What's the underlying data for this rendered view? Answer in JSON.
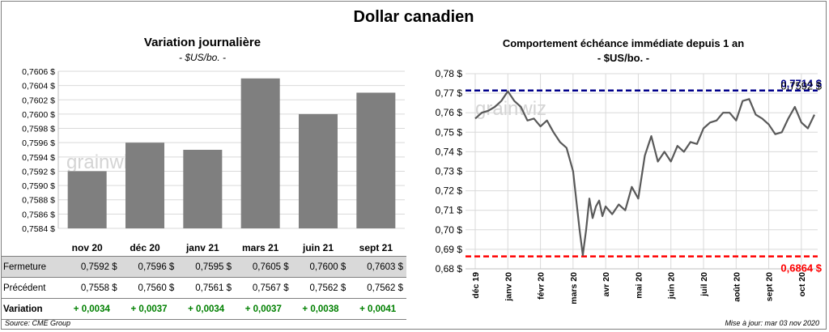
{
  "title": "Dollar canadien",
  "left_panel": {
    "title": "Variation  journalière",
    "subtitle": "- $US/bo. -",
    "watermark": "grainwiz"
  },
  "right_panel": {
    "title": "Comportement échéance immédiate depuis 1 an",
    "subtitle": "- $US/bo. -",
    "watermark": "grainwiz",
    "high_label": "0,7714 $",
    "last_label": "0,7592 $",
    "low_label": "0,6864 $"
  },
  "table": {
    "rows": [
      {
        "label": "Fermeture",
        "bold": false,
        "values": [
          "0,7592  $",
          "0,7596  $",
          "0,7595  $",
          "0,7605  $",
          "0,7600  $",
          "0,7603  $"
        ]
      },
      {
        "label": "Précédent",
        "bold": false,
        "values": [
          "0,7558  $",
          "0,7560  $",
          "0,7561  $",
          "0,7567  $",
          "0,7562  $",
          "0,7562  $"
        ]
      },
      {
        "label": "Variation",
        "bold": true,
        "values": [
          "+ 0,0034",
          "+ 0,0037",
          "+ 0,0034",
          "+ 0,0037",
          "+ 0,0038",
          "+ 0,0041"
        ]
      }
    ]
  },
  "footer": {
    "source": "Source: CME Group",
    "updated": "Mise à jour: mar 03 nov 2020"
  },
  "colors": {
    "bar": "#7f7f7f",
    "line": "#595959",
    "high_line": "#00008b",
    "low_line": "#ff0000",
    "positive": "#008000"
  },
  "chart_data": [
    {
      "type": "bar",
      "title": "Variation  journalière",
      "subtitle": "- $US/bo. -",
      "categories": [
        "nov 20",
        "déc 20",
        "janv 21",
        "mars 21",
        "juin 21",
        "sept 21"
      ],
      "values": [
        0.7592,
        0.7596,
        0.7595,
        0.7605,
        0.76,
        0.7603
      ],
      "ylim": [
        0.7584,
        0.7606
      ],
      "yticks": [
        "0,7584 $",
        "0,7586 $",
        "0,7588 $",
        "0,7590 $",
        "0,7592 $",
        "0,7594 $",
        "0,7596 $",
        "0,7598 $",
        "0,7600 $",
        "0,7602 $",
        "0,7604 $",
        "0,7606 $"
      ],
      "grid": true
    },
    {
      "type": "line",
      "title": "Comportement échéance immédiate depuis 1 an",
      "subtitle": "- $US/bo. -",
      "ylim": [
        0.68,
        0.78
      ],
      "yticks": [
        "0,68 $",
        "0,69 $",
        "0,70 $",
        "0,71 $",
        "0,72 $",
        "0,73 $",
        "0,74 $",
        "0,75 $",
        "0,76 $",
        "0,77 $",
        "0,78 $"
      ],
      "x_ticks": [
        "déc 19",
        "janv 20",
        "févr 20",
        "mars 20",
        "avr 20",
        "mai 20",
        "juin 20",
        "juil 20",
        "août 20",
        "sept 20",
        "oct 20"
      ],
      "x_tick_month_index": [
        0,
        1,
        2,
        3,
        4,
        5,
        6,
        7,
        8,
        9,
        10
      ],
      "x": [
        0,
        0.2,
        0.4,
        0.6,
        0.8,
        1.0,
        1.2,
        1.4,
        1.6,
        1.8,
        2.0,
        2.2,
        2.4,
        2.6,
        2.8,
        3.0,
        3.1,
        3.2,
        3.3,
        3.4,
        3.5,
        3.6,
        3.7,
        3.8,
        3.9,
        4.0,
        4.2,
        4.4,
        4.6,
        4.8,
        5.0,
        5.2,
        5.4,
        5.6,
        5.8,
        6.0,
        6.2,
        6.4,
        6.6,
        6.8,
        7.0,
        7.2,
        7.4,
        7.6,
        7.8,
        8.0,
        8.2,
        8.4,
        8.6,
        8.8,
        9.0,
        9.2,
        9.4,
        9.6,
        9.8,
        10.0,
        10.2,
        10.4
      ],
      "series": [
        {
          "values": [
            0.757,
            0.76,
            0.761,
            0.763,
            0.766,
            0.771,
            0.766,
            0.763,
            0.756,
            0.757,
            0.753,
            0.756,
            0.75,
            0.745,
            0.742,
            0.73,
            0.715,
            0.7,
            0.687,
            0.7,
            0.716,
            0.706,
            0.712,
            0.715,
            0.707,
            0.712,
            0.708,
            0.713,
            0.71,
            0.722,
            0.716,
            0.738,
            0.748,
            0.735,
            0.74,
            0.735,
            0.743,
            0.74,
            0.745,
            0.744,
            0.752,
            0.755,
            0.756,
            0.76,
            0.76,
            0.756,
            0.766,
            0.767,
            0.759,
            0.757,
            0.754,
            0.749,
            0.75,
            0.757,
            0.763,
            0.755,
            0.752,
            0.759
          ]
        }
      ],
      "reference_lines": [
        {
          "value": 0.7714,
          "label": "0,7714 $",
          "style": "dashed"
        },
        {
          "value": 0.6864,
          "label": "0,6864 $",
          "style": "dashed"
        }
      ],
      "last_value_label": "0,7592 $",
      "grid": true
    }
  ]
}
